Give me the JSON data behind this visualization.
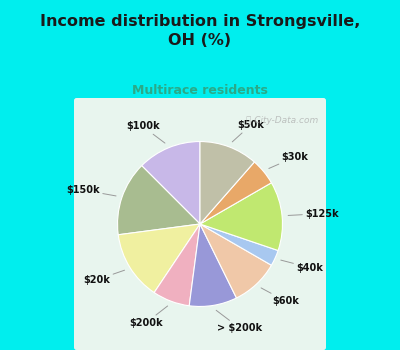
{
  "title": "Income distribution in Strongsville,\nOH (%)",
  "subtitle": "Multirace residents",
  "title_color": "#1a1a1a",
  "subtitle_color": "#2aaa88",
  "bg_color_outer": "#00eeee",
  "bg_color_inner": "#e8f5ee",
  "labels": [
    "$100k",
    "$150k",
    "$20k",
    "$200k",
    "> $200k",
    "$60k",
    "$40k",
    "$125k",
    "$30k",
    "$50k"
  ],
  "sizes": [
    12,
    14,
    13,
    7,
    9,
    9,
    3,
    13,
    5,
    11
  ],
  "colors": [
    "#c8b8e8",
    "#a8bc90",
    "#f0f0a0",
    "#f0b0c0",
    "#9898d8",
    "#f0c8a8",
    "#a8c8f0",
    "#c0e870",
    "#e8a868",
    "#c0c0a8"
  ],
  "startangle": 90,
  "watermark": "ⓘ City-Data.com"
}
